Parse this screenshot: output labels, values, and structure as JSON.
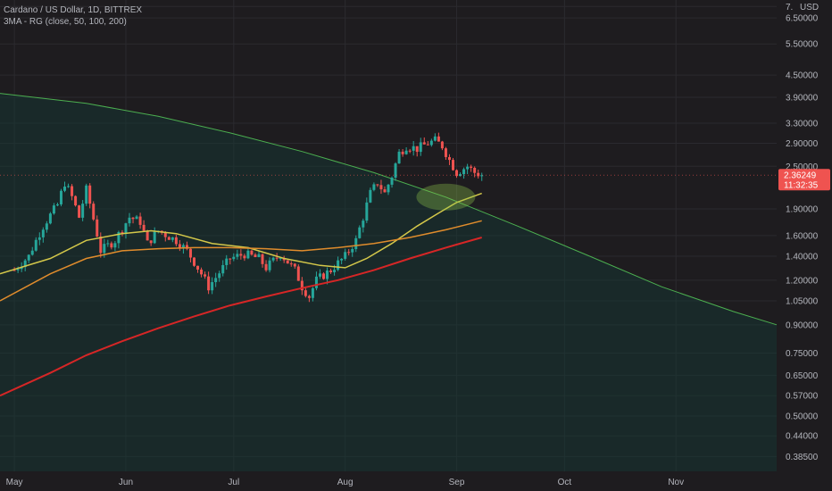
{
  "header": {
    "title": "Cardano / US Dollar, 1D, BITTREX",
    "indicator": "3MA - RG (close, 50, 100, 200)",
    "currency_label": "USD"
  },
  "price": {
    "last": "2.36249",
    "countdown": "11:32:35"
  },
  "colors": {
    "background": "#1e1c1f",
    "bullish": "#26a69a",
    "bearish": "#ef5350",
    "ma50": "#d4c84a",
    "ma100": "#e08c2c",
    "ma200": "#d62626",
    "arc": "#4caf50",
    "highlight": "#8bc34a",
    "price_tag": "#ef5350",
    "grid": "#2b2a2f"
  },
  "chart_data": {
    "type": "candlestick",
    "y_scale": "log",
    "ylim": [
      0.35,
      7.3
    ],
    "y_ticks": [
      "7.",
      "6.50000",
      "5.50000",
      "4.50000",
      "3.90000",
      "3.30000",
      "2.90000",
      "2.50000",
      "1.90000",
      "1.60000",
      "1.40000",
      "1.20000",
      "1.05000",
      "0.90000",
      "0.75000",
      "0.65000",
      "0.57000",
      "0.50000",
      "0.44000",
      "0.38500"
    ],
    "x_ticks": [
      "May",
      "Jun",
      "Jul",
      "Aug",
      "Sep",
      "Oct",
      "Nov"
    ],
    "x_tick_days": [
      0,
      31,
      61,
      92,
      123,
      153,
      184
    ],
    "x_range_days": [
      -4,
      212
    ],
    "candle_points": [
      [
        0,
        1.28
      ],
      [
        4,
        1.4
      ],
      [
        8,
        1.7
      ],
      [
        12,
        1.95
      ],
      [
        14,
        2.25
      ],
      [
        16,
        2.05
      ],
      [
        18,
        1.8
      ],
      [
        20,
        2.15
      ],
      [
        22,
        1.78
      ],
      [
        24,
        1.45
      ],
      [
        28,
        1.55
      ],
      [
        32,
        1.8
      ],
      [
        35,
        1.75
      ],
      [
        37,
        1.52
      ],
      [
        40,
        1.65
      ],
      [
        45,
        1.55
      ],
      [
        48,
        1.45
      ],
      [
        52,
        1.25
      ],
      [
        54,
        1.15
      ],
      [
        56,
        1.22
      ],
      [
        60,
        1.38
      ],
      [
        64,
        1.42
      ],
      [
        68,
        1.38
      ],
      [
        70,
        1.3
      ],
      [
        74,
        1.42
      ],
      [
        78,
        1.28
      ],
      [
        80,
        1.15
      ],
      [
        82,
        1.08
      ],
      [
        84,
        1.2
      ],
      [
        88,
        1.28
      ],
      [
        92,
        1.4
      ],
      [
        95,
        1.55
      ],
      [
        97,
        1.8
      ],
      [
        99,
        2.1
      ],
      [
        101,
        2.25
      ],
      [
        103,
        2.1
      ],
      [
        105,
        2.35
      ],
      [
        107,
        2.72
      ],
      [
        109,
        2.85
      ],
      [
        112,
        2.8
      ],
      [
        115,
        2.9
      ],
      [
        117,
        2.95
      ],
      [
        119,
        2.85
      ],
      [
        121,
        2.6
      ],
      [
        123,
        2.4
      ],
      [
        126,
        2.5
      ],
      [
        128,
        2.4
      ],
      [
        130,
        2.36
      ]
    ],
    "series": [
      {
        "name": "MA 50",
        "points": [
          [
            -4,
            1.25
          ],
          [
            10,
            1.38
          ],
          [
            20,
            1.55
          ],
          [
            30,
            1.62
          ],
          [
            38,
            1.65
          ],
          [
            45,
            1.62
          ],
          [
            55,
            1.52
          ],
          [
            65,
            1.48
          ],
          [
            75,
            1.38
          ],
          [
            85,
            1.32
          ],
          [
            92,
            1.3
          ],
          [
            98,
            1.38
          ],
          [
            105,
            1.52
          ],
          [
            112,
            1.7
          ],
          [
            118,
            1.85
          ],
          [
            123,
            1.98
          ],
          [
            130,
            2.1
          ]
        ]
      },
      {
        "name": "MA 100",
        "points": [
          [
            -4,
            1.05
          ],
          [
            10,
            1.25
          ],
          [
            20,
            1.38
          ],
          [
            30,
            1.45
          ],
          [
            40,
            1.47
          ],
          [
            50,
            1.48
          ],
          [
            60,
            1.48
          ],
          [
            70,
            1.47
          ],
          [
            80,
            1.45
          ],
          [
            90,
            1.48
          ],
          [
            100,
            1.52
          ],
          [
            110,
            1.58
          ],
          [
            120,
            1.66
          ],
          [
            130,
            1.76
          ]
        ]
      },
      {
        "name": "MA 200",
        "points": [
          [
            -4,
            0.57
          ],
          [
            10,
            0.66
          ],
          [
            20,
            0.74
          ],
          [
            30,
            0.81
          ],
          [
            40,
            0.88
          ],
          [
            50,
            0.95
          ],
          [
            60,
            1.02
          ],
          [
            70,
            1.08
          ],
          [
            80,
            1.14
          ],
          [
            90,
            1.2
          ],
          [
            100,
            1.28
          ],
          [
            110,
            1.38
          ],
          [
            120,
            1.48
          ],
          [
            130,
            1.58
          ]
        ]
      }
    ],
    "arc": [
      [
        -4,
        4.0
      ],
      [
        20,
        3.75
      ],
      [
        40,
        3.45
      ],
      [
        60,
        3.1
      ],
      [
        80,
        2.75
      ],
      [
        100,
        2.4
      ],
      [
        120,
        2.05
      ],
      [
        140,
        1.7
      ],
      [
        160,
        1.4
      ],
      [
        180,
        1.15
      ],
      [
        200,
        0.98
      ],
      [
        212,
        0.9
      ]
    ]
  }
}
